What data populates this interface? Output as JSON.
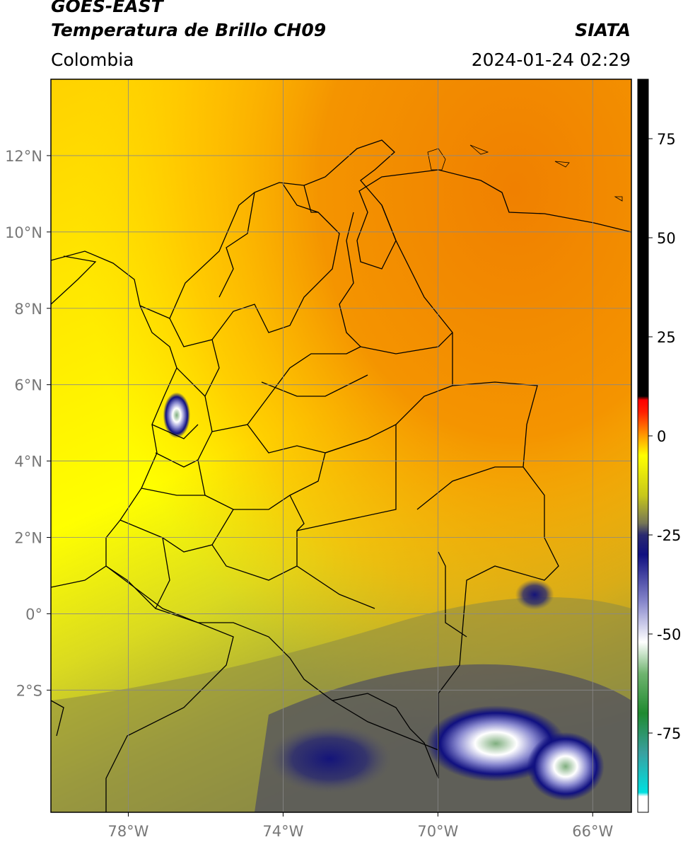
{
  "header": {
    "satellite": "GOES-EAST",
    "product": "Temperatura de Brillo CH09",
    "region": "Colombia",
    "organization": "SIATA",
    "datetime": "2024-01-24 02:29"
  },
  "map": {
    "lon_range": [
      -80,
      -65
    ],
    "lat_range": [
      -5.2,
      14
    ],
    "lon_ticks": [
      {
        "value": -78,
        "label": "78°W"
      },
      {
        "value": -74,
        "label": "74°W"
      },
      {
        "value": -70,
        "label": "70°W"
      },
      {
        "value": -66,
        "label": "66°W"
      }
    ],
    "lat_ticks": [
      {
        "value": 12,
        "label": "12°N"
      },
      {
        "value": 10,
        "label": "10°N"
      },
      {
        "value": 8,
        "label": "8°N"
      },
      {
        "value": 6,
        "label": "6°N"
      },
      {
        "value": 4,
        "label": "4°N"
      },
      {
        "value": 2,
        "label": "2°N"
      },
      {
        "value": 0,
        "label": "0°"
      },
      {
        "value": -2,
        "label": "2°S"
      }
    ],
    "grid": true,
    "cold_cells": [
      {
        "lon": -76.75,
        "lat": 5.2,
        "rx": 0.35,
        "ry": 0.6,
        "level": "deep"
      },
      {
        "lon": -68.5,
        "lat": -3.4,
        "rx": 1.8,
        "ry": 1.0,
        "level": "deep"
      },
      {
        "lon": -66.7,
        "lat": -4.0,
        "rx": 1.0,
        "ry": 0.9,
        "level": "deep"
      },
      {
        "lon": -72.8,
        "lat": -3.8,
        "rx": 1.6,
        "ry": 0.9,
        "level": "medium"
      },
      {
        "lon": -67.5,
        "lat": 0.5,
        "rx": 0.5,
        "ry": 0.4,
        "level": "medium"
      }
    ]
  },
  "colorbar": {
    "vmin": -95,
    "vmax": 90,
    "ticks": [
      {
        "value": 75,
        "label": "75"
      },
      {
        "value": 50,
        "label": "50"
      },
      {
        "value": 25,
        "label": "25"
      },
      {
        "value": 0,
        "label": "0"
      },
      {
        "value": -25,
        "label": "-25"
      },
      {
        "value": -50,
        "label": "-50"
      },
      {
        "value": -75,
        "label": "-75"
      }
    ],
    "stops": [
      {
        "value": -95,
        "color": "#ffffff"
      },
      {
        "value": -91,
        "color": "#ffffff"
      },
      {
        "value": -90,
        "color": "#00e0e0"
      },
      {
        "value": -80,
        "color": "#3aa0a0"
      },
      {
        "value": -70,
        "color": "#1f8a30"
      },
      {
        "value": -60,
        "color": "#6fb46f"
      },
      {
        "value": -52,
        "color": "#ffffff"
      },
      {
        "value": -42,
        "color": "#8888cc"
      },
      {
        "value": -30,
        "color": "#101080"
      },
      {
        "value": -25,
        "color": "#2a2a70"
      },
      {
        "value": -22,
        "color": "#777755"
      },
      {
        "value": -15,
        "color": "#c8c81a"
      },
      {
        "value": -5,
        "color": "#ffff00"
      },
      {
        "value": 0,
        "color": "#ff9c00"
      },
      {
        "value": 6,
        "color": "#ff2000"
      },
      {
        "value": 9,
        "color": "#ff0000"
      },
      {
        "value": 10,
        "color": "#000000"
      },
      {
        "value": 90,
        "color": "#000000"
      }
    ],
    "colors": {
      "warm_orange": "#f29000",
      "yellow": "#ffff00",
      "olive": "#b8b830",
      "deep_blue": "#101080"
    }
  }
}
